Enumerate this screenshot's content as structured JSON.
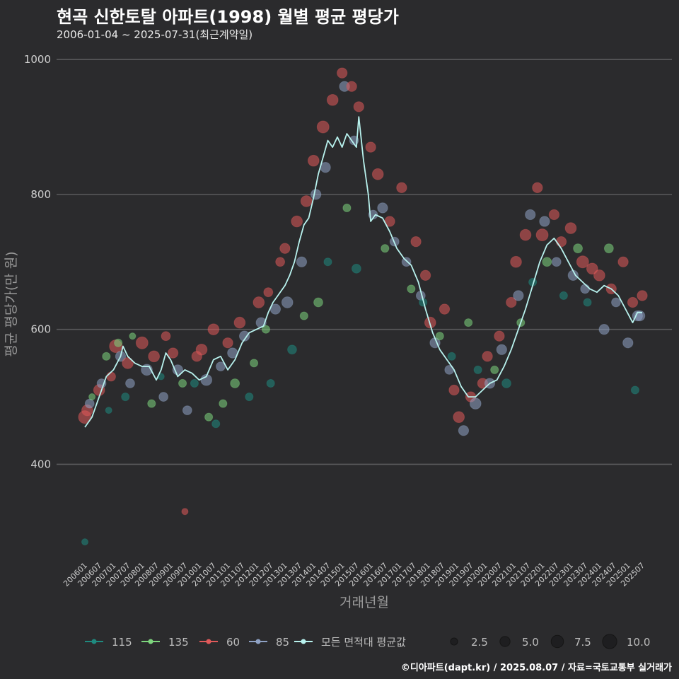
{
  "header": {
    "title": "현곡 신한토탈 아파트(1998) 월별 평균 평당가",
    "subtitle": "2006-01-04 ~ 2025-07-31(최근계약일)"
  },
  "footer": {
    "credit": "©디아파트(dapt.kr) / 2025.08.07 / 자료=국토교통부 실거래가"
  },
  "colors": {
    "background": "#2b2b2d",
    "grid": "#5a5a5c",
    "s115": "#1f8a7f",
    "s135": "#7ed67e",
    "s60": "#e05a5a",
    "s85": "#8fa2c4",
    "avg": "#b8f2ee"
  },
  "chart_data": {
    "type": "scatter",
    "title": "현곡 신한토탈 아파트(1998) 월별 평균 평당가",
    "xlabel": "거래년월",
    "ylabel": "평균 평당가(만 원)",
    "ylim": [
      260,
      1020
    ],
    "yticks": [
      400,
      600,
      800,
      1000
    ],
    "xticks": [
      "200601",
      "200607",
      "200701",
      "200707",
      "200801",
      "200807",
      "200901",
      "200907",
      "201001",
      "201007",
      "201101",
      "201107",
      "201201",
      "201207",
      "201301",
      "201307",
      "201401",
      "201407",
      "201501",
      "201507",
      "201601",
      "201607",
      "201701",
      "201707",
      "201801",
      "201807",
      "201901",
      "201907",
      "202001",
      "202007",
      "202101",
      "202107",
      "202201",
      "202207",
      "202301",
      "202307",
      "202401",
      "202407",
      "202501",
      "202507"
    ],
    "legend": {
      "placement": "bottom",
      "series_items": [
        {
          "name": "115",
          "key": "s115"
        },
        {
          "name": "135",
          "key": "s135"
        },
        {
          "name": "60",
          "key": "s60"
        },
        {
          "name": "85",
          "key": "s85"
        },
        {
          "name": "모든 면적대 평균값",
          "key": "avg"
        }
      ],
      "size_items": [
        {
          "label": "2.5",
          "value": 2.5
        },
        {
          "label": "5.0",
          "value": 5.0
        },
        {
          "label": "7.5",
          "value": 7.5
        },
        {
          "label": "10.0",
          "value": 10.0
        }
      ]
    },
    "avg_line": [
      [
        "200601",
        455
      ],
      [
        "200604",
        470
      ],
      [
        "200607",
        500
      ],
      [
        "200610",
        530
      ],
      [
        "200701",
        540
      ],
      [
        "200704",
        560
      ],
      [
        "200705",
        575
      ],
      [
        "200707",
        560
      ],
      [
        "200710",
        550
      ],
      [
        "200801",
        545
      ],
      [
        "200804",
        545
      ],
      [
        "200807",
        525
      ],
      [
        "200809",
        540
      ],
      [
        "200811",
        565
      ],
      [
        "200901",
        555
      ],
      [
        "200904",
        530
      ],
      [
        "200907",
        540
      ],
      [
        "200910",
        535
      ],
      [
        "201001",
        525
      ],
      [
        "201004",
        530
      ],
      [
        "201007",
        555
      ],
      [
        "201010",
        560
      ],
      [
        "201101",
        540
      ],
      [
        "201104",
        555
      ],
      [
        "201107",
        580
      ],
      [
        "201110",
        595
      ],
      [
        "201201",
        600
      ],
      [
        "201204",
        605
      ],
      [
        "201206",
        625
      ],
      [
        "201208",
        640
      ],
      [
        "201210",
        650
      ],
      [
        "201301",
        665
      ],
      [
        "201303",
        680
      ],
      [
        "201305",
        700
      ],
      [
        "201307",
        730
      ],
      [
        "201309",
        755
      ],
      [
        "201311",
        765
      ],
      [
        "201401",
        795
      ],
      [
        "201403",
        830
      ],
      [
        "201405",
        855
      ],
      [
        "201407",
        880
      ],
      [
        "201409",
        870
      ],
      [
        "201411",
        885
      ],
      [
        "201501",
        870
      ],
      [
        "201503",
        890
      ],
      [
        "201505",
        880
      ],
      [
        "201507",
        870
      ],
      [
        "201508",
        915
      ],
      [
        "201510",
        850
      ],
      [
        "201512",
        800
      ],
      [
        "201601",
        760
      ],
      [
        "201603",
        770
      ],
      [
        "201606",
        765
      ],
      [
        "201609",
        745
      ],
      [
        "201612",
        720
      ],
      [
        "201703",
        705
      ],
      [
        "201706",
        695
      ],
      [
        "201709",
        670
      ],
      [
        "201712",
        630
      ],
      [
        "201803",
        595
      ],
      [
        "201806",
        570
      ],
      [
        "201809",
        555
      ],
      [
        "201812",
        540
      ],
      [
        "201903",
        515
      ],
      [
        "201906",
        500
      ],
      [
        "201909",
        500
      ],
      [
        "201912",
        510
      ],
      [
        "202003",
        520
      ],
      [
        "202006",
        525
      ],
      [
        "202009",
        545
      ],
      [
        "202012",
        570
      ],
      [
        "202103",
        600
      ],
      [
        "202106",
        630
      ],
      [
        "202109",
        665
      ],
      [
        "202112",
        700
      ],
      [
        "202203",
        725
      ],
      [
        "202206",
        735
      ],
      [
        "202209",
        720
      ],
      [
        "202212",
        700
      ],
      [
        "202303",
        680
      ],
      [
        "202306",
        670
      ],
      [
        "202309",
        660
      ],
      [
        "202312",
        655
      ],
      [
        "202403",
        665
      ],
      [
        "202406",
        660
      ],
      [
        "202409",
        650
      ],
      [
        "202412",
        630
      ],
      [
        "202503",
        610
      ],
      [
        "202505",
        625
      ],
      [
        "202507",
        625
      ]
    ],
    "points": [
      [
        "s60",
        "200601",
        470,
        8
      ],
      [
        "s60",
        "200602",
        480,
        6
      ],
      [
        "s85",
        "200603",
        490,
        4
      ],
      [
        "s115",
        "200601",
        285,
        2
      ],
      [
        "s135",
        "200604",
        500,
        2
      ],
      [
        "s60",
        "200607",
        510,
        6
      ],
      [
        "s85",
        "200608",
        520,
        4
      ],
      [
        "s135",
        "200610",
        560,
        3
      ],
      [
        "s60",
        "200612",
        530,
        4
      ],
      [
        "s115",
        "200611",
        480,
        2
      ],
      [
        "s60",
        "200702",
        575,
        8
      ],
      [
        "s85",
        "200704",
        560,
        5
      ],
      [
        "s135",
        "200703",
        580,
        3
      ],
      [
        "s60",
        "200707",
        550,
        6
      ],
      [
        "s85",
        "200708",
        520,
        4
      ],
      [
        "s115",
        "200706",
        500,
        3
      ],
      [
        "s135",
        "200709",
        590,
        2
      ],
      [
        "s60",
        "200801",
        580,
        7
      ],
      [
        "s85",
        "200803",
        540,
        6
      ],
      [
        "s135",
        "200805",
        490,
        3
      ],
      [
        "s60",
        "200806",
        560,
        6
      ],
      [
        "s85",
        "200810",
        500,
        4
      ],
      [
        "s115",
        "200809",
        530,
        2
      ],
      [
        "s60",
        "200811",
        590,
        4
      ],
      [
        "s60",
        "200902",
        565,
        5
      ],
      [
        "s85",
        "200904",
        540,
        5
      ],
      [
        "s135",
        "200906",
        520,
        3
      ],
      [
        "s60",
        "200907",
        330,
        2
      ],
      [
        "s85",
        "200908",
        480,
        4
      ],
      [
        "s115",
        "200911",
        520,
        3
      ],
      [
        "s60",
        "200912",
        560,
        5
      ],
      [
        "s60",
        "201002",
        570,
        6
      ],
      [
        "s85",
        "201004",
        525,
        6
      ],
      [
        "s135",
        "201005",
        470,
        3
      ],
      [
        "s60",
        "201007",
        600,
        6
      ],
      [
        "s115",
        "201008",
        460,
        3
      ],
      [
        "s85",
        "201010",
        545,
        4
      ],
      [
        "s135",
        "201011",
        490,
        3
      ],
      [
        "s60",
        "201101",
        580,
        5
      ],
      [
        "s85",
        "201103",
        565,
        5
      ],
      [
        "s135",
        "201104",
        520,
        4
      ],
      [
        "s60",
        "201106",
        610,
        6
      ],
      [
        "s85",
        "201108",
        590,
        5
      ],
      [
        "s115",
        "201110",
        500,
        3
      ],
      [
        "s135",
        "201112",
        550,
        3
      ],
      [
        "s60",
        "201202",
        640,
        6
      ],
      [
        "s85",
        "201203",
        610,
        5
      ],
      [
        "s135",
        "201205",
        600,
        3
      ],
      [
        "s60",
        "201206",
        655,
        4
      ],
      [
        "s115",
        "201207",
        520,
        3
      ],
      [
        "s85",
        "201209",
        630,
        5
      ],
      [
        "s60",
        "201211",
        700,
        4
      ],
      [
        "s60",
        "201301",
        720,
        5
      ],
      [
        "s85",
        "201302",
        640,
        6
      ],
      [
        "s115",
        "201304",
        570,
        4
      ],
      [
        "s60",
        "201306",
        760,
        6
      ],
      [
        "s85",
        "201308",
        700,
        5
      ],
      [
        "s135",
        "201309",
        620,
        3
      ],
      [
        "s60",
        "201310",
        790,
        6
      ],
      [
        "s60",
        "201401",
        850,
        6
      ],
      [
        "s85",
        "201402",
        800,
        5
      ],
      [
        "s135",
        "201403",
        640,
        4
      ],
      [
        "s60",
        "201405",
        900,
        7
      ],
      [
        "s85",
        "201406",
        840,
        5
      ],
      [
        "s115",
        "201407",
        700,
        3
      ],
      [
        "s60",
        "201409",
        940,
        6
      ],
      [
        "s60",
        "201501",
        980,
        5
      ],
      [
        "s85",
        "201502",
        960,
        5
      ],
      [
        "s135",
        "201503",
        780,
        3
      ],
      [
        "s60",
        "201505",
        960,
        5
      ],
      [
        "s85",
        "201506",
        880,
        4
      ],
      [
        "s115",
        "201507",
        690,
        4
      ],
      [
        "s60",
        "201508",
        930,
        5
      ],
      [
        "s60",
        "201601",
        870,
        5
      ],
      [
        "s85",
        "201602",
        770,
        4
      ],
      [
        "s60",
        "201604",
        830,
        6
      ],
      [
        "s85",
        "201606",
        780,
        5
      ],
      [
        "s135",
        "201607",
        720,
        3
      ],
      [
        "s60",
        "201609",
        760,
        5
      ],
      [
        "s85",
        "201611",
        730,
        4
      ],
      [
        "s60",
        "201702",
        810,
        5
      ],
      [
        "s85",
        "201704",
        700,
        4
      ],
      [
        "s135",
        "201706",
        660,
        3
      ],
      [
        "s60",
        "201708",
        730,
        5
      ],
      [
        "s85",
        "201710",
        650,
        4
      ],
      [
        "s60",
        "201712",
        680,
        5
      ],
      [
        "s115",
        "201711",
        640,
        3
      ],
      [
        "s60",
        "201802",
        610,
        6
      ],
      [
        "s85",
        "201804",
        580,
        5
      ],
      [
        "s135",
        "201806",
        590,
        3
      ],
      [
        "s60",
        "201808",
        630,
        5
      ],
      [
        "s85",
        "201810",
        540,
        4
      ],
      [
        "s60",
        "201812",
        510,
        5
      ],
      [
        "s115",
        "201811",
        560,
        3
      ],
      [
        "s60",
        "201902",
        470,
        6
      ],
      [
        "s85",
        "201904",
        450,
        5
      ],
      [
        "s135",
        "201906",
        610,
        3
      ],
      [
        "s60",
        "201907",
        500,
        5
      ],
      [
        "s85",
        "201909",
        490,
        6
      ],
      [
        "s115",
        "201910",
        540,
        3
      ],
      [
        "s60",
        "201912",
        520,
        5
      ],
      [
        "s60",
        "202002",
        560,
        5
      ],
      [
        "s85",
        "202003",
        520,
        5
      ],
      [
        "s135",
        "202005",
        540,
        3
      ],
      [
        "s60",
        "202007",
        590,
        5
      ],
      [
        "s85",
        "202008",
        570,
        5
      ],
      [
        "s115",
        "202010",
        520,
        4
      ],
      [
        "s60",
        "202012",
        640,
        5
      ],
      [
        "s60",
        "202102",
        700,
        6
      ],
      [
        "s85",
        "202103",
        650,
        5
      ],
      [
        "s135",
        "202104",
        610,
        3
      ],
      [
        "s60",
        "202106",
        740,
        6
      ],
      [
        "s85",
        "202108",
        770,
        5
      ],
      [
        "s115",
        "202109",
        670,
        3
      ],
      [
        "s60",
        "202111",
        810,
        5
      ],
      [
        "s60",
        "202201",
        740,
        7
      ],
      [
        "s85",
        "202202",
        760,
        5
      ],
      [
        "s135",
        "202203",
        700,
        4
      ],
      [
        "s60",
        "202206",
        770,
        5
      ],
      [
        "s85",
        "202207",
        700,
        4
      ],
      [
        "s60",
        "202209",
        730,
        5
      ],
      [
        "s115",
        "202210",
        650,
        3
      ],
      [
        "s60",
        "202301",
        750,
        6
      ],
      [
        "s85",
        "202302",
        680,
        5
      ],
      [
        "s135",
        "202304",
        720,
        4
      ],
      [
        "s60",
        "202306",
        700,
        7
      ],
      [
        "s85",
        "202307",
        660,
        4
      ],
      [
        "s115",
        "202308",
        640,
        3
      ],
      [
        "s60",
        "202310",
        690,
        6
      ],
      [
        "s60",
        "202401",
        680,
        6
      ],
      [
        "s85",
        "202403",
        600,
        5
      ],
      [
        "s135",
        "202405",
        720,
        4
      ],
      [
        "s60",
        "202406",
        660,
        5
      ],
      [
        "s85",
        "202408",
        640,
        4
      ],
      [
        "s60",
        "202411",
        700,
        5
      ],
      [
        "s85",
        "202501",
        580,
        5
      ],
      [
        "s60",
        "202503",
        640,
        5
      ],
      [
        "s85",
        "202505",
        620,
        5
      ],
      [
        "s115",
        "202504",
        510,
        3
      ],
      [
        "s60",
        "202507",
        650,
        5
      ],
      [
        "s85",
        "202506",
        620,
        5
      ]
    ]
  }
}
